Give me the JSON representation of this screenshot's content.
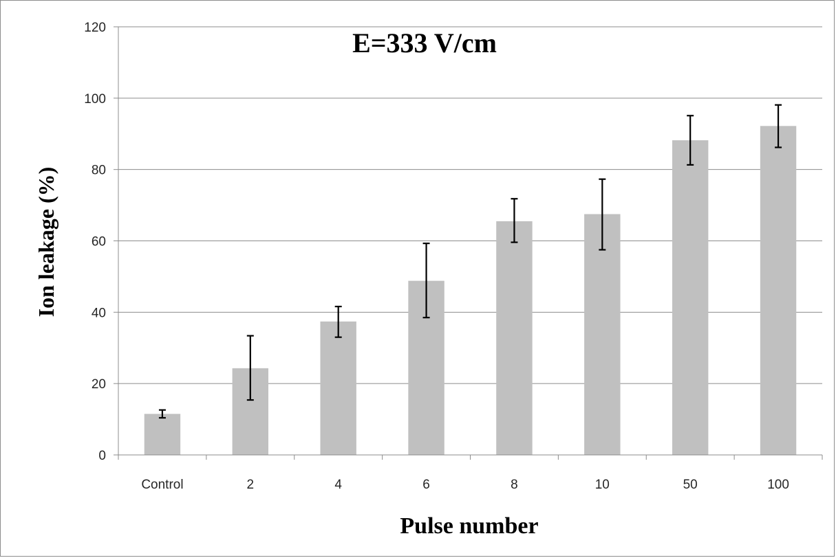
{
  "chart_data": {
    "type": "bar",
    "title": "E=333 V/cm",
    "xlabel": "Pulse number",
    "ylabel": "Ion leakage (%)",
    "categories": [
      "Control",
      "2",
      "4",
      "6",
      "8",
      "10",
      "50",
      "100"
    ],
    "values": [
      11.5,
      24.3,
      37.4,
      48.8,
      65.5,
      67.5,
      88.2,
      92.2
    ],
    "error_low": [
      10.4,
      15.4,
      33.0,
      38.5,
      59.6,
      57.5,
      81.3,
      86.2
    ],
    "error_high": [
      12.6,
      33.4,
      41.6,
      59.3,
      71.8,
      77.3,
      95.1,
      98.1
    ],
    "ylim": [
      0,
      120
    ],
    "yticks": [
      0,
      20,
      40,
      60,
      80,
      100,
      120
    ],
    "grid": true,
    "legend": "none",
    "colors": {
      "bar": "#c0c0c0",
      "grid": "#8c8c8c",
      "error_bar": "#000000"
    }
  }
}
